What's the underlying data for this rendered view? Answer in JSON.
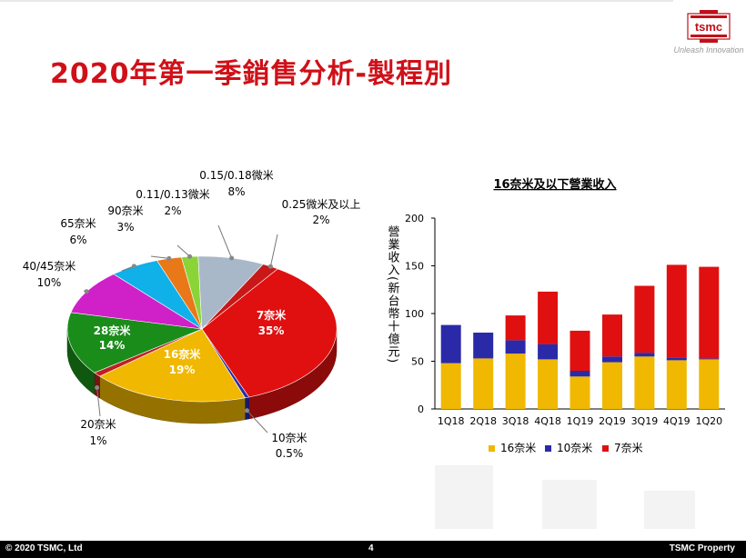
{
  "header": {
    "title": "2020年第一季銷售分析-製程別",
    "logo_text": "tsmc",
    "tagline": "Unleash Innovation"
  },
  "footer": {
    "copyright": "© 2020 TSMC, Ltd",
    "page": "4",
    "property": "TSMC Property"
  },
  "colors": {
    "title_red": "#d01018",
    "n7": "#e01010",
    "n16": "#f0b800",
    "n10": "#2a2aa8",
    "n20": "#c02020",
    "n28": "#1a8c1a",
    "n40_45": "#d020c8",
    "n65": "#10b0e8",
    "n90": "#e87818",
    "n011_013": "#8ad438",
    "n015_018": "#a8b8c8",
    "n025": "#c81818"
  },
  "chart_data": [
    {
      "type": "pie",
      "title": "",
      "slices": [
        {
          "name": "7奈米",
          "pct_label": "35%",
          "value": 35
        },
        {
          "name": "10奈米",
          "pct_label": "0.5%",
          "value": 0.5
        },
        {
          "name": "16奈米",
          "pct_label": "19%",
          "value": 19
        },
        {
          "name": "20奈米",
          "pct_label": "1%",
          "value": 1
        },
        {
          "name": "28奈米",
          "pct_label": "14%",
          "value": 14
        },
        {
          "name": "40/45奈米",
          "pct_label": "10%",
          "value": 10
        },
        {
          "name": "65奈米",
          "pct_label": "6%",
          "value": 6
        },
        {
          "name": "90奈米",
          "pct_label": "3%",
          "value": 3
        },
        {
          "name": "0.11/0.13微米",
          "pct_label": "2%",
          "value": 2
        },
        {
          "name": "0.15/0.18微米",
          "pct_label": "8%",
          "value": 8
        },
        {
          "name": "0.25微米及以上",
          "pct_label": "2%",
          "value": 2
        }
      ]
    },
    {
      "type": "bar",
      "stacked": true,
      "title": "16奈米及以下營業收入",
      "ylabel": "營業收入(新台幣十億元)",
      "xlabel": "",
      "ylim": [
        0,
        200
      ],
      "yticks": [
        "0",
        "50",
        "100",
        "150",
        "200"
      ],
      "categories": [
        "1Q18",
        "2Q18",
        "3Q18",
        "4Q18",
        "1Q19",
        "2Q19",
        "3Q19",
        "4Q19",
        "1Q20"
      ],
      "series": [
        {
          "name": "16奈米",
          "values": [
            48,
            53,
            58,
            52,
            34,
            49,
            55,
            51,
            52
          ]
        },
        {
          "name": "10奈米",
          "values": [
            40,
            27,
            14,
            16,
            6,
            6,
            4,
            3,
            1
          ]
        },
        {
          "name": "7奈米",
          "values": [
            0,
            0,
            26,
            55,
            42,
            44,
            70,
            97,
            96
          ]
        }
      ],
      "legend": "bottom"
    }
  ]
}
